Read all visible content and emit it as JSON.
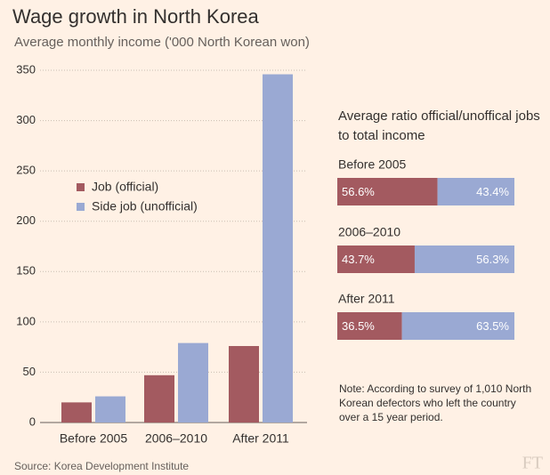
{
  "title": "Wage growth in North Korea",
  "subtitle": "Average monthly income ('000 North Korean won)",
  "chart_data": [
    {
      "type": "bar",
      "orientation": "vertical",
      "categories": [
        "Before 2005",
        "2006–2010",
        "After 2011"
      ],
      "series": [
        {
          "name": "Job (official)",
          "color": "#a35a60",
          "values": [
            20,
            47,
            76
          ]
        },
        {
          "name": "Side job (unofficial)",
          "color": "#9aa9d3",
          "values": [
            26,
            79,
            346
          ]
        }
      ],
      "ylim": [
        0,
        350
      ],
      "yticks": [
        0,
        50,
        100,
        150,
        200,
        250,
        300,
        350
      ],
      "grid": true,
      "legend": "center-left"
    },
    {
      "type": "bar",
      "orientation": "horizontal",
      "stacked": true,
      "title": "Average ratio official/unoffical jobs to total income",
      "categories": [
        "Before 2005",
        "2006–2010",
        "After 2011"
      ],
      "series": [
        {
          "name": "Job (official)",
          "color": "#a35a60",
          "values": [
            56.6,
            43.7,
            36.5
          ],
          "value_labels": [
            "56.6%",
            "43.7%",
            "36.5%"
          ]
        },
        {
          "name": "Side job (unofficial)",
          "color": "#9aa9d3",
          "values": [
            43.4,
            56.3,
            63.5
          ],
          "value_labels": [
            "43.4%",
            "56.3%",
            "63.5%"
          ]
        }
      ],
      "xlim": [
        0,
        100
      ],
      "annotation": "Note: According to survey of 1,010 North Korean defectors who left the country over a 15 year period."
    }
  ],
  "footer": {
    "source": "Source: Korea Development Institute",
    "logo": "FT"
  }
}
